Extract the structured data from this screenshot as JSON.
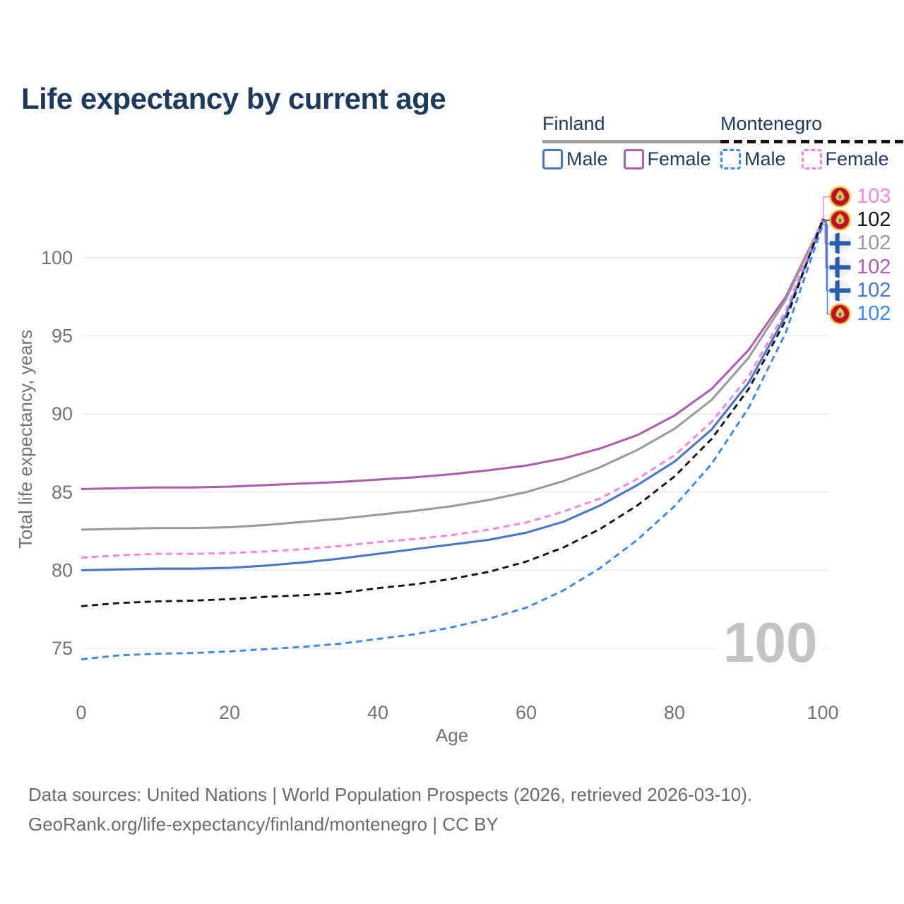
{
  "title": "Life expectancy by current age",
  "watermark": "100",
  "colors": {
    "title": "#1d3a5e",
    "legend_text": "#1d3a5e",
    "axis_text": "#737373",
    "grid": "#e7e7e7",
    "watermark": "#c3c3c3",
    "footer": "#6b6b6b",
    "finland_underline": "#9e9e9e",
    "montenegro_underline": "#141414",
    "finland_male": "#4976c9",
    "finland_female": "#ad5fae",
    "finland_both": "#9a9a9a",
    "montenegro_male": "#3c87f2",
    "montenegro_female": "#ff82df",
    "montenegro_both": "#141414"
  },
  "legend": {
    "groups": [
      {
        "country": "Finland",
        "line_style": "solid",
        "underline_color": "#9e9e9e",
        "items": [
          {
            "label": "Male",
            "color": "#4976c9",
            "dashed": false
          },
          {
            "label": "Female",
            "color": "#ad5fae",
            "dashed": false
          }
        ]
      },
      {
        "country": "Montenegro",
        "line_style": "dashed",
        "underline_color": "#141414",
        "items": [
          {
            "label": "Male",
            "color": "#3c87f2",
            "dashed": true
          },
          {
            "label": "Female",
            "color": "#ff82df",
            "dashed": true
          }
        ]
      }
    ]
  },
  "end_labels": [
    {
      "value": "103",
      "flag": "montenegro",
      "series": "Montenegro Female",
      "color": "#ff85dc"
    },
    {
      "value": "102",
      "flag": "montenegro",
      "series": "Montenegro Both sexes",
      "color": "#141414"
    },
    {
      "value": "102",
      "flag": "finland",
      "series": "Finland Both sexes",
      "color": "#9a9a9a"
    },
    {
      "value": "102",
      "flag": "finland",
      "series": "Finland Female",
      "color": "#ad5fae"
    },
    {
      "value": "102",
      "flag": "finland",
      "series": "Finland Male",
      "color": "#4976c9"
    },
    {
      "value": "102",
      "flag": "montenegro",
      "series": "Montenegro Male",
      "color": "#3c87f2"
    }
  ],
  "footer": {
    "line1": "Data sources: United Nations | World Population Prospects (2026, retrieved 2026-03-10).",
    "line2": "GeoRank.org/life-expectancy/finland/montenegro | CC BY"
  },
  "chart_data": {
    "type": "line",
    "title": "Life expectancy by current age",
    "xlabel": "Age",
    "ylabel": "Total life expectancy, years",
    "x_ticks": [
      0,
      20,
      40,
      60,
      80,
      100
    ],
    "y_ticks": [
      75,
      80,
      85,
      90,
      95,
      100
    ],
    "xlim": [
      0,
      100
    ],
    "ylim": [
      73.5,
      103.5
    ],
    "grid": true,
    "legend_position": "top-right",
    "x": [
      0,
      5,
      10,
      15,
      20,
      25,
      30,
      35,
      40,
      45,
      50,
      55,
      60,
      65,
      70,
      75,
      80,
      85,
      90,
      95,
      100
    ],
    "series": [
      {
        "name": "Finland Female",
        "country": "Finland",
        "sex": "Female",
        "color": "#ad5fae",
        "dashed": false,
        "end_label": "102",
        "values": [
          85.2,
          85.25,
          85.3,
          85.3,
          85.35,
          85.45,
          85.55,
          85.65,
          85.8,
          85.95,
          86.15,
          86.4,
          86.7,
          87.15,
          87.8,
          88.65,
          89.9,
          91.6,
          94.1,
          97.5,
          102.35
        ]
      },
      {
        "name": "Finland Both sexes",
        "country": "Finland",
        "sex": "Both",
        "color": "#9a9a9a",
        "dashed": false,
        "end_label": "102",
        "values": [
          82.6,
          82.65,
          82.7,
          82.7,
          82.75,
          82.9,
          83.1,
          83.3,
          83.55,
          83.8,
          84.1,
          84.5,
          85.0,
          85.7,
          86.6,
          87.7,
          89.05,
          90.9,
          93.6,
          97.3,
          102.4
        ]
      },
      {
        "name": "Finland Male",
        "country": "Finland",
        "sex": "Male",
        "color": "#4976c9",
        "dashed": false,
        "end_label": "102",
        "values": [
          80.0,
          80.05,
          80.1,
          80.1,
          80.15,
          80.3,
          80.5,
          80.75,
          81.05,
          81.35,
          81.65,
          81.95,
          82.4,
          83.1,
          84.15,
          85.45,
          86.95,
          89.0,
          92.0,
          96.3,
          102.3
        ]
      },
      {
        "name": "Montenegro Female",
        "country": "Montenegro",
        "sex": "Female",
        "color": "#ff82df",
        "dashed": true,
        "end_label": "103",
        "values": [
          80.8,
          80.95,
          81.05,
          81.05,
          81.1,
          81.2,
          81.35,
          81.55,
          81.8,
          82.0,
          82.25,
          82.6,
          83.05,
          83.75,
          84.6,
          85.85,
          87.35,
          89.5,
          92.4,
          96.6,
          102.55
        ]
      },
      {
        "name": "Montenegro Both sexes",
        "country": "Montenegro",
        "sex": "Both",
        "color": "#141414",
        "dashed": true,
        "end_label": "102",
        "values": [
          77.7,
          77.9,
          78.0,
          78.05,
          78.15,
          78.3,
          78.4,
          78.55,
          78.85,
          79.1,
          79.45,
          79.9,
          80.55,
          81.45,
          82.65,
          84.15,
          86.0,
          88.4,
          91.6,
          96.0,
          102.45
        ]
      },
      {
        "name": "Montenegro Male",
        "country": "Montenegro",
        "sex": "Male",
        "color": "#3c87f2",
        "dashed": true,
        "end_label": "102",
        "values": [
          74.3,
          74.55,
          74.65,
          74.7,
          74.8,
          74.95,
          75.1,
          75.3,
          75.6,
          75.9,
          76.35,
          76.9,
          77.6,
          78.7,
          80.15,
          81.95,
          84.1,
          86.8,
          90.4,
          95.2,
          102.1
        ]
      }
    ]
  }
}
